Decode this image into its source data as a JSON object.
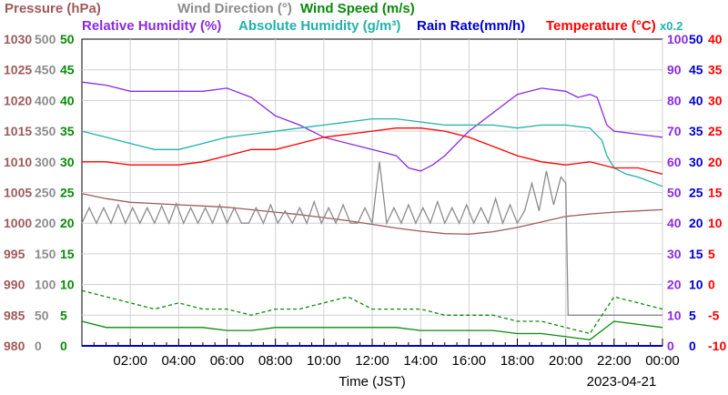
{
  "header": {
    "row1": [
      {
        "label": "Pressure (hPa)",
        "color": "#a05a5a"
      },
      {
        "label": "Wind Direction (°)",
        "color": "#8c8c8c"
      },
      {
        "label": "Wind Speed (m/s)",
        "color": "#0a8a0a"
      }
    ],
    "row2": [
      {
        "label": "Relative Humidity (%)",
        "color": "#8a2be2"
      },
      {
        "label": "Absolute Humidity (g/m³)",
        "color": "#20b2aa"
      },
      {
        "label": "Rain Rate(mm/h)",
        "color": "#0000cc"
      },
      {
        "label": "Temperature (°C)",
        "color": "#ff0000"
      }
    ],
    "scale_note": "x0.2"
  },
  "chart_data": {
    "type": "line",
    "xlabel": "Time (JST)",
    "date": "2023-04-21",
    "x_ticks": [
      "02:00",
      "04:00",
      "06:00",
      "08:00",
      "10:00",
      "12:00",
      "14:00",
      "16:00",
      "18:00",
      "20:00",
      "22:00",
      "00:00"
    ],
    "x_range": [
      0,
      24
    ],
    "axes": {
      "pressure": {
        "color": "#a05a5a",
        "range": [
          980,
          1030
        ],
        "ticks": [
          "1030",
          "1025",
          "1020",
          "1015",
          "1010",
          "1005",
          "1000",
          "995",
          "990",
          "985",
          "980"
        ]
      },
      "wind_direction": {
        "color": "#8c8c8c",
        "range": [
          0,
          500
        ],
        "ticks": [
          "500",
          "450",
          "400",
          "350",
          "300",
          "250",
          "200",
          "150",
          "100",
          "50",
          "0"
        ]
      },
      "wind_speed": {
        "color": "#0a8a0a",
        "range": [
          0,
          50
        ],
        "ticks": [
          "50",
          "45",
          "40",
          "35",
          "30",
          "25",
          "20",
          "15",
          "10",
          "5",
          "0"
        ]
      },
      "humidity": {
        "color": "#8a2be2",
        "range": [
          0,
          100
        ],
        "ticks": [
          "100",
          "90",
          "80",
          "70",
          "60",
          "50",
          "40",
          "30",
          "20",
          "10",
          "0"
        ]
      },
      "rain_rate": {
        "color": "#0000cc",
        "range": [
          0,
          50
        ],
        "ticks": [
          "50",
          "45",
          "40",
          "35",
          "30",
          "25",
          "20",
          "15",
          "10",
          "5",
          "0"
        ]
      },
      "temperature": {
        "color": "#ff0000",
        "range": [
          -10,
          40
        ],
        "ticks": [
          "40",
          "35",
          "30",
          "25",
          "20",
          "15",
          "10",
          "5",
          "0",
          "-5",
          "-10"
        ]
      }
    },
    "series": [
      {
        "name": "Pressure (hPa)",
        "axis": "pressure",
        "color": "#a05a5a",
        "x": [
          0,
          1,
          2,
          3,
          4,
          5,
          6,
          7,
          8,
          9,
          10,
          11,
          12,
          13,
          14,
          15,
          16,
          17,
          18,
          19,
          20,
          21,
          22,
          23,
          24
        ],
        "y": [
          1004.8,
          1004,
          1003.4,
          1003.2,
          1003,
          1002.8,
          1002.6,
          1002.2,
          1001.8,
          1001.4,
          1000.9,
          1000.4,
          999.8,
          999.2,
          998.7,
          998.3,
          998.2,
          998.6,
          999.3,
          1000.2,
          1001.1,
          1001.5,
          1001.8,
          1002.0,
          1002.2
        ]
      },
      {
        "name": "Wind Direction (°)",
        "axis": "wind_direction",
        "color": "#8c8c8c",
        "x": [
          0,
          0.3,
          0.6,
          0.9,
          1.2,
          1.5,
          1.8,
          2.1,
          2.4,
          2.7,
          3,
          3.3,
          3.6,
          3.9,
          4.2,
          4.5,
          4.8,
          5.1,
          5.4,
          5.7,
          6,
          6.3,
          6.6,
          6.9,
          7.2,
          7.5,
          7.8,
          8.1,
          8.4,
          8.7,
          9,
          9.3,
          9.6,
          9.9,
          10.2,
          10.5,
          10.8,
          11.1,
          11.4,
          11.7,
          12,
          12.3,
          12.6,
          12.9,
          13.2,
          13.5,
          13.8,
          14.1,
          14.4,
          14.7,
          15,
          15.3,
          15.6,
          15.9,
          16.2,
          16.5,
          16.8,
          17.1,
          17.4,
          17.7,
          18,
          18.3,
          18.6,
          18.9,
          19.2,
          19.5,
          19.8,
          20,
          20.1,
          20.3,
          20.6,
          20.9,
          21.2,
          21.5,
          21.8,
          22.1,
          22.4,
          22.7,
          23,
          23.3,
          23.6,
          24
        ],
        "y": [
          200,
          225,
          200,
          225,
          200,
          230,
          200,
          225,
          200,
          225,
          200,
          228,
          200,
          232,
          200,
          225,
          200,
          225,
          200,
          230,
          200,
          225,
          200,
          200,
          225,
          200,
          230,
          200,
          220,
          200,
          225,
          200,
          235,
          200,
          225,
          200,
          230,
          200,
          200,
          225,
          200,
          300,
          200,
          225,
          200,
          230,
          200,
          225,
          200,
          235,
          200,
          225,
          200,
          230,
          200,
          225,
          200,
          240,
          200,
          230,
          200,
          220,
          265,
          220,
          285,
          230,
          275,
          265,
          50,
          50,
          50,
          50,
          50,
          50,
          50,
          50,
          50,
          50,
          50,
          50,
          50,
          50
        ]
      },
      {
        "name": "Wind Speed (m/s)",
        "axis": "wind_speed",
        "color": "#0a8a0a",
        "x": [
          0,
          1,
          2,
          3,
          4,
          5,
          6,
          7,
          8,
          9,
          10,
          11,
          12,
          13,
          14,
          15,
          16,
          17,
          18,
          19,
          20,
          21,
          22,
          23,
          24
        ],
        "y": [
          4,
          3,
          3,
          3,
          3,
          3,
          2.5,
          2.5,
          3,
          3,
          3,
          3,
          3,
          3,
          2.5,
          2.5,
          2.5,
          2.5,
          2,
          2,
          1.5,
          1,
          4,
          3.5,
          3
        ]
      },
      {
        "name": "Wind Speed Max (m/s)",
        "axis": "wind_speed",
        "color": "#0a8a0a",
        "x": [
          0,
          1,
          2,
          3,
          4,
          5,
          6,
          7,
          8,
          9,
          10,
          11,
          12,
          13,
          14,
          15,
          16,
          17,
          18,
          19,
          20,
          21,
          22,
          23,
          24
        ],
        "y": [
          9,
          8,
          7,
          6,
          7,
          6,
          6,
          5,
          6,
          6,
          7,
          8,
          6,
          6,
          6,
          5,
          5,
          5,
          4,
          4,
          3,
          2,
          8,
          7,
          6
        ]
      },
      {
        "name": "Relative Humidity (%)",
        "axis": "humidity",
        "color": "#8a2be2",
        "x": [
          0,
          1,
          2,
          3,
          4,
          5,
          6,
          7,
          8,
          9,
          10,
          11,
          12,
          13,
          13.5,
          14,
          14.5,
          15,
          16,
          17,
          18,
          19,
          20,
          20.5,
          21,
          21.3,
          21.7,
          22,
          23,
          24
        ],
        "y": [
          86,
          85,
          83,
          83,
          83,
          83,
          84,
          81,
          75,
          72,
          68,
          66,
          64,
          62,
          58,
          57,
          59,
          62,
          70,
          76,
          82,
          84,
          83,
          81,
          82,
          81,
          72,
          70,
          69,
          68
        ]
      },
      {
        "name": "Absolute Humidity (g/m³)",
        "axis": "humidity",
        "color": "#20b2aa",
        "x": [
          0,
          1,
          2,
          3,
          4,
          5,
          6,
          7,
          8,
          9,
          10,
          11,
          12,
          13,
          14,
          15,
          16,
          17,
          18,
          19,
          20,
          21,
          21.5,
          21.7,
          22,
          22.5,
          23,
          24
        ],
        "y": [
          70,
          68,
          66,
          64,
          64,
          66,
          68,
          69,
          70,
          71,
          72,
          73,
          74,
          74,
          73,
          72,
          72,
          72,
          71,
          72,
          72,
          71,
          67,
          62,
          58,
          56,
          55,
          52
        ]
      },
      {
        "name": "Rain Rate(mm/h)",
        "axis": "rain_rate",
        "color": "#0000cc",
        "x": [
          0,
          24
        ],
        "y": [
          0,
          0
        ]
      },
      {
        "name": "Temperature (°C)",
        "axis": "temperature",
        "color": "#ff0000",
        "x": [
          0,
          1,
          2,
          3,
          4,
          5,
          6,
          7,
          8,
          9,
          10,
          11,
          12,
          13,
          14,
          15,
          16,
          17,
          18,
          19,
          20,
          21,
          22,
          23,
          24
        ],
        "y": [
          20,
          20,
          19.5,
          19.5,
          19.5,
          20,
          21,
          22,
          22,
          23,
          24,
          24.5,
          25,
          25.5,
          25.5,
          25,
          24,
          22.5,
          21,
          20,
          19.5,
          20,
          19,
          19,
          18
        ]
      }
    ]
  }
}
